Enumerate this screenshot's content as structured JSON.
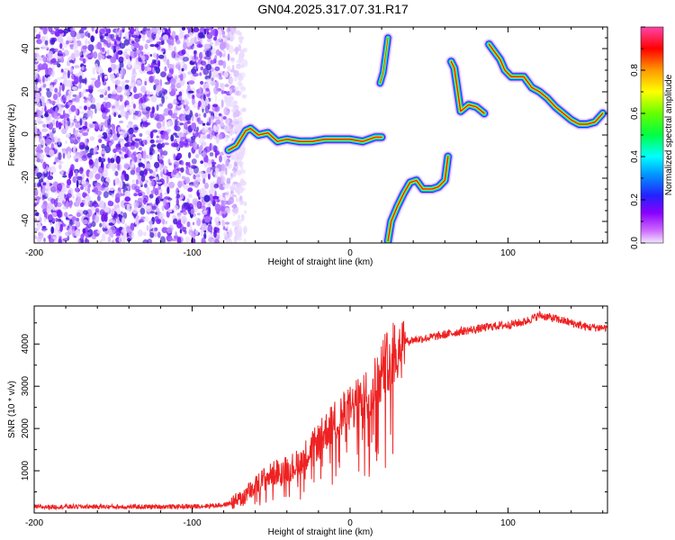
{
  "title": "GN04.2025.317.07.31.R17",
  "chart_data": [
    {
      "type": "heatmap",
      "title": "GN04.2025.317.07.31.R17",
      "xlabel": "Height of straight line (km)",
      "ylabel": "Frequency (Hz)",
      "xlim": [
        -200,
        163
      ],
      "ylim": [
        -50,
        50
      ],
      "xticks": [
        "-200",
        "-100",
        "0",
        "100"
      ],
      "yticks": [
        "-40",
        "-20",
        "0",
        "20",
        "40"
      ],
      "colorbar": {
        "label": "Normalized spectral amplitude",
        "range": [
          0,
          1
        ],
        "ticks": [
          "0.0",
          "0.2",
          "0.4",
          "0.6",
          "0.8"
        ],
        "colormap": "rainbow (magenta-blue-cyan-green-yellow-red)"
      },
      "noise_region_x": [
        -200,
        -72
      ],
      "ridge": [
        [
          -77,
          -7
        ],
        [
          -72,
          -5
        ],
        [
          -66,
          2
        ],
        [
          -63,
          3
        ],
        [
          -58,
          0
        ],
        [
          -52,
          1
        ],
        [
          -46,
          -3
        ],
        [
          -40,
          -2
        ],
        [
          -32,
          -3
        ],
        [
          -24,
          -3
        ],
        [
          -16,
          -2
        ],
        [
          -8,
          -2
        ],
        [
          0,
          -2
        ],
        [
          8,
          -3
        ],
        [
          16,
          -1
        ],
        [
          20,
          -1
        ]
      ],
      "branch_lower": [
        [
          24,
          -49
        ],
        [
          26,
          -40
        ],
        [
          30,
          -33
        ],
        [
          34,
          -27
        ],
        [
          38,
          -22
        ],
        [
          42,
          -21
        ],
        [
          46,
          -25
        ],
        [
          52,
          -25
        ],
        [
          56,
          -24
        ],
        [
          60,
          -21
        ],
        [
          62,
          -10
        ]
      ],
      "branch_upper_short": [
        [
          19,
          24
        ],
        [
          21,
          29
        ],
        [
          24,
          45
        ]
      ],
      "branch_mid": [
        [
          64,
          34
        ],
        [
          66,
          31
        ],
        [
          70,
          11
        ],
        [
          75,
          14
        ],
        [
          80,
          13
        ],
        [
          85,
          10
        ]
      ],
      "branch_right": [
        [
          88,
          42
        ],
        [
          92,
          38
        ],
        [
          95,
          35
        ],
        [
          98,
          30
        ],
        [
          102,
          27
        ],
        [
          110,
          27
        ],
        [
          115,
          22
        ],
        [
          120,
          20
        ],
        [
          125,
          17
        ],
        [
          130,
          13
        ],
        [
          135,
          10
        ],
        [
          140,
          7
        ],
        [
          145,
          5
        ],
        [
          150,
          5
        ],
        [
          155,
          6
        ],
        [
          160,
          10
        ]
      ]
    },
    {
      "type": "line",
      "title": "",
      "xlabel": "Height of straight line (km)",
      "ylabel": "SNR (10 * v/v)",
      "xlim": [
        -200,
        163
      ],
      "ylim": [
        0,
        4900
      ],
      "xticks": [
        "-200",
        "-100",
        "0",
        "100"
      ],
      "yticks": [
        "1000",
        "2000",
        "3000",
        "4000"
      ],
      "color": "#ee2222",
      "series": [
        {
          "name": "SNR",
          "x": [
            -200,
            -180,
            -160,
            -140,
            -120,
            -100,
            -90,
            -80,
            -75,
            -70,
            -65,
            -60,
            -55,
            -50,
            -45,
            -40,
            -35,
            -30,
            -25,
            -20,
            -15,
            -10,
            -5,
            0,
            5,
            10,
            15,
            20,
            25,
            30,
            35,
            40,
            50,
            60,
            70,
            80,
            90,
            100,
            110,
            120,
            130,
            140,
            150,
            163
          ],
          "values": [
            140,
            150,
            150,
            145,
            150,
            155,
            170,
            190,
            240,
            320,
            480,
            620,
            800,
            900,
            1000,
            1050,
            1120,
            1300,
            1500,
            1700,
            1950,
            2150,
            2300,
            2450,
            2600,
            2800,
            3000,
            3400,
            3700,
            3950,
            4050,
            4100,
            4150,
            4220,
            4300,
            4350,
            4420,
            4450,
            4520,
            4680,
            4600,
            4500,
            4400,
            4380
          ]
        }
      ]
    }
  ]
}
